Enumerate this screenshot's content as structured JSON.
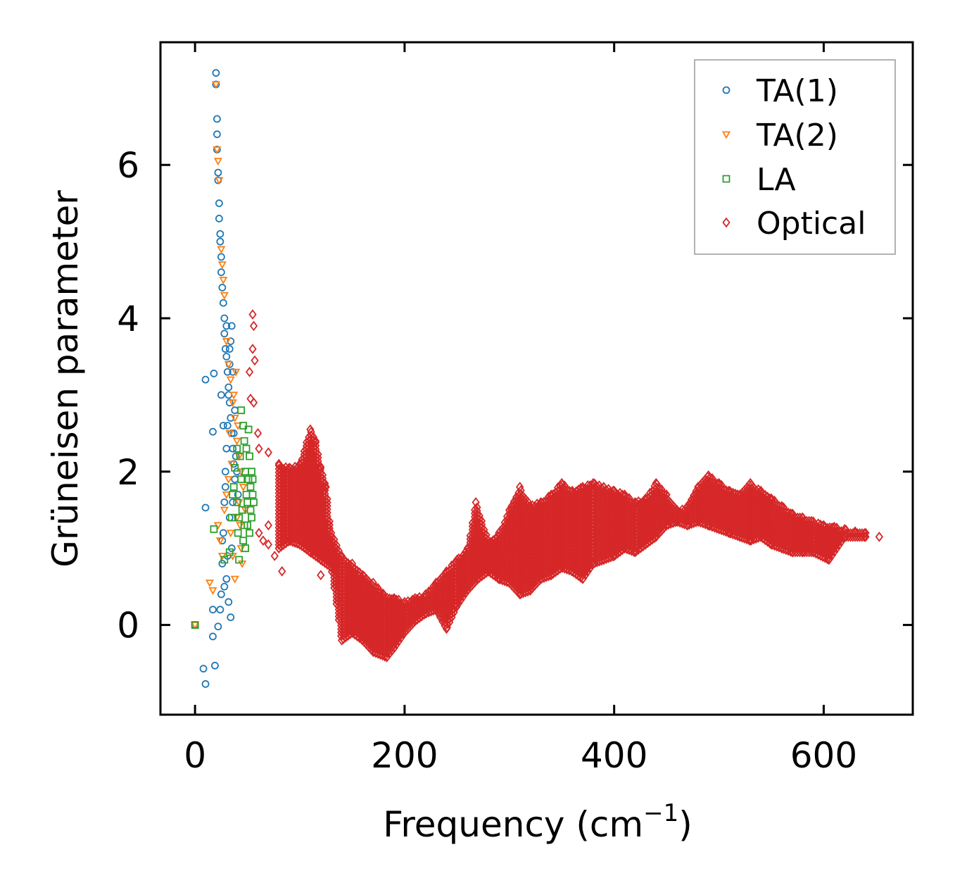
{
  "chart_data": {
    "type": "scatter",
    "title": "",
    "xlabel": "Frequency (cm",
    "xlabel_sup": "−1",
    "xlabel_close": ")",
    "ylabel": "Grüneisen parameter",
    "xlim": [
      -33,
      685
    ],
    "ylim": [
      -1.17,
      7.6
    ],
    "xticks": [
      0,
      200,
      400,
      600
    ],
    "xtick_labels": [
      "0",
      "200",
      "400",
      "600"
    ],
    "yticks": [
      0,
      2,
      4,
      6
    ],
    "ytick_labels": [
      "0",
      "2",
      "4",
      "6"
    ],
    "grid": false,
    "legend_position": "top-right",
    "series": [
      {
        "name": "TA(1)",
        "marker": "circle",
        "color": "#1f77b4",
        "points": [
          [
            0,
            0
          ],
          [
            8,
            -0.57
          ],
          [
            10,
            -0.77
          ],
          [
            10,
            1.53
          ],
          [
            10,
            3.2
          ],
          [
            17,
            0.2
          ],
          [
            17,
            -0.15
          ],
          [
            17,
            2.52
          ],
          [
            18,
            3.28
          ],
          [
            19,
            -0.53
          ],
          [
            20,
            7.2
          ],
          [
            20,
            7.05
          ],
          [
            21,
            6.6
          ],
          [
            21,
            6.4
          ],
          [
            21,
            6.2
          ],
          [
            22,
            5.9
          ],
          [
            22,
            5.8
          ],
          [
            23,
            5.5
          ],
          [
            23,
            5.3
          ],
          [
            24,
            5.1
          ],
          [
            24,
            5.0
          ],
          [
            25,
            4.8
          ],
          [
            25,
            4.6
          ],
          [
            26,
            4.4
          ],
          [
            27,
            4.2
          ],
          [
            28,
            4.0
          ],
          [
            28,
            3.8
          ],
          [
            29,
            3.6
          ],
          [
            30,
            3.5
          ],
          [
            31,
            3.3
          ],
          [
            32,
            3.1
          ],
          [
            33,
            2.9
          ],
          [
            34,
            2.7
          ],
          [
            35,
            2.5
          ],
          [
            36,
            2.3
          ],
          [
            37,
            2.1
          ],
          [
            38,
            1.9
          ],
          [
            22,
            -0.02
          ],
          [
            24,
            0.2
          ],
          [
            25,
            0.4
          ],
          [
            26,
            0.8
          ],
          [
            27,
            1.2
          ],
          [
            28,
            1.6
          ],
          [
            29,
            2.0
          ],
          [
            30,
            2.3
          ],
          [
            31,
            2.6
          ],
          [
            32,
            3.0
          ],
          [
            33,
            3.4
          ],
          [
            34,
            3.7
          ],
          [
            35,
            3.9
          ],
          [
            36,
            3.3
          ],
          [
            30,
            0.6
          ],
          [
            32,
            0.3
          ],
          [
            34,
            0.1
          ],
          [
            36,
            1.6
          ],
          [
            38,
            2.8
          ],
          [
            40,
            2.0
          ],
          [
            26,
            1.1
          ],
          [
            28,
            0.5
          ],
          [
            33,
            1.4
          ],
          [
            35,
            1.0
          ],
          [
            31,
            0.9
          ],
          [
            29,
            1.8
          ],
          [
            37,
            2.5
          ],
          [
            39,
            2.2
          ],
          [
            27,
            2.6
          ],
          [
            41,
            1.7
          ],
          [
            25,
            3.0
          ],
          [
            30,
            3.9
          ],
          [
            33,
            3.6
          ]
        ]
      },
      {
        "name": "TA(2)",
        "marker": "triangle",
        "color": "#ff7f0e",
        "points": [
          [
            0,
            0
          ],
          [
            14,
            0.55
          ],
          [
            17,
            0.45
          ],
          [
            20,
            7.05
          ],
          [
            21,
            6.2
          ],
          [
            22,
            6.05
          ],
          [
            23,
            5.8
          ],
          [
            25,
            4.9
          ],
          [
            26,
            4.7
          ],
          [
            27,
            4.5
          ],
          [
            28,
            4.3
          ],
          [
            30,
            3.7
          ],
          [
            32,
            3.4
          ],
          [
            34,
            3.2
          ],
          [
            36,
            2.9
          ],
          [
            38,
            2.7
          ],
          [
            40,
            2.4
          ],
          [
            42,
            2.2
          ],
          [
            44,
            2.0
          ],
          [
            46,
            1.8
          ],
          [
            22,
            1.3
          ],
          [
            24,
            1.1
          ],
          [
            26,
            0.9
          ],
          [
            28,
            1.5
          ],
          [
            30,
            1.7
          ],
          [
            32,
            1.9
          ],
          [
            34,
            1.2
          ],
          [
            36,
            0.9
          ],
          [
            38,
            0.6
          ],
          [
            40,
            1.4
          ],
          [
            42,
            1.6
          ],
          [
            44,
            1.0
          ],
          [
            48,
            1.5
          ],
          [
            35,
            2.1
          ],
          [
            33,
            2.5
          ],
          [
            37,
            3.0
          ],
          [
            39,
            3.3
          ],
          [
            41,
            2.6
          ],
          [
            43,
            1.3
          ],
          [
            45,
            0.8
          ]
        ]
      },
      {
        "name": "LA",
        "marker": "square",
        "color": "#2ca02c",
        "points": [
          [
            0,
            0
          ],
          [
            18,
            1.25
          ],
          [
            28,
            0.85
          ],
          [
            33,
            0.95
          ],
          [
            35,
            1.4
          ],
          [
            37,
            1.8
          ],
          [
            38,
            2.05
          ],
          [
            40,
            1.6
          ],
          [
            41,
            1.2
          ],
          [
            42,
            0.85
          ],
          [
            43,
            2.2
          ],
          [
            44,
            1.9
          ],
          [
            45,
            1.5
          ],
          [
            46,
            1.1
          ],
          [
            47,
            2.4
          ],
          [
            48,
            2.0
          ],
          [
            49,
            1.7
          ],
          [
            50,
            1.3
          ],
          [
            51,
            2.55
          ],
          [
            52,
            2.2
          ],
          [
            53,
            1.8
          ],
          [
            54,
            1.4
          ],
          [
            55,
            1.9
          ],
          [
            56,
            1.6
          ],
          [
            44,
            2.8
          ],
          [
            46,
            2.6
          ],
          [
            48,
            1.0
          ],
          [
            50,
            1.6
          ],
          [
            52,
            1.2
          ],
          [
            54,
            2.0
          ],
          [
            42,
            1.4
          ],
          [
            40,
            2.3
          ],
          [
            36,
            1.7
          ],
          [
            47,
            1.3
          ],
          [
            49,
            2.3
          ],
          [
            51,
            1.9
          ],
          [
            53,
            1.5
          ],
          [
            55,
            1.7
          ]
        ]
      },
      {
        "name": "Optical",
        "marker": "diamond",
        "color": "#d62728",
        "points": [
          [
            55,
            4.05
          ],
          [
            56,
            3.9
          ],
          [
            55,
            3.6
          ],
          [
            57,
            3.45
          ],
          [
            52,
            3.3
          ],
          [
            53,
            2.95
          ],
          [
            56,
            2.9
          ],
          [
            60,
            2.5
          ],
          [
            83,
            0.7
          ],
          [
            76,
            0.9
          ],
          [
            120,
            0.65
          ],
          [
            65,
            1.1
          ],
          [
            70,
            1.05
          ],
          [
            110,
            1.2
          ],
          [
            61,
            2.3
          ],
          [
            70,
            2.25
          ],
          [
            80,
            2.1
          ],
          [
            90,
            2.05
          ],
          [
            100,
            2.1
          ],
          [
            110,
            2.55
          ],
          [
            115,
            2.4
          ],
          [
            120,
            2.05
          ],
          [
            125,
            1.8
          ],
          [
            130,
            1.2
          ],
          [
            140,
            0.9
          ],
          [
            150,
            0.8
          ],
          [
            160,
            0.65
          ],
          [
            170,
            0.55
          ],
          [
            180,
            0.4
          ],
          [
            190,
            0.35
          ],
          [
            200,
            0.3
          ],
          [
            210,
            0.35
          ],
          [
            220,
            0.4
          ],
          [
            230,
            0.55
          ],
          [
            240,
            0.7
          ],
          [
            250,
            0.85
          ],
          [
            260,
            1.0
          ],
          [
            268,
            1.6
          ],
          [
            280,
            1.1
          ],
          [
            290,
            1.2
          ],
          [
            300,
            1.5
          ],
          [
            310,
            1.8
          ],
          [
            320,
            1.55
          ],
          [
            330,
            1.6
          ],
          [
            340,
            1.7
          ],
          [
            350,
            1.85
          ],
          [
            360,
            1.75
          ],
          [
            370,
            1.8
          ],
          [
            380,
            1.85
          ],
          [
            390,
            1.8
          ],
          [
            400,
            1.75
          ],
          [
            410,
            1.7
          ],
          [
            420,
            1.6
          ],
          [
            430,
            1.65
          ],
          [
            440,
            1.85
          ],
          [
            450,
            1.7
          ],
          [
            460,
            1.5
          ],
          [
            470,
            1.55
          ],
          [
            480,
            1.8
          ],
          [
            490,
            1.95
          ],
          [
            500,
            1.85
          ],
          [
            510,
            1.75
          ],
          [
            520,
            1.7
          ],
          [
            530,
            1.85
          ],
          [
            540,
            1.75
          ],
          [
            550,
            1.65
          ],
          [
            560,
            1.55
          ],
          [
            570,
            1.45
          ],
          [
            580,
            1.4
          ],
          [
            590,
            1.35
          ],
          [
            600,
            1.3
          ],
          [
            610,
            1.28
          ],
          [
            620,
            1.25
          ],
          [
            630,
            1.22
          ],
          [
            640,
            1.2
          ],
          [
            653,
            1.15
          ],
          [
            61,
            1.2
          ],
          [
            70,
            1.3
          ],
          [
            80,
            1.0
          ],
          [
            90,
            1.1
          ],
          [
            100,
            1.05
          ],
          [
            110,
            0.95
          ],
          [
            120,
            0.85
          ],
          [
            130,
            0.75
          ],
          [
            140,
            -0.2
          ],
          [
            150,
            -0.1
          ],
          [
            160,
            -0.2
          ],
          [
            170,
            -0.35
          ],
          [
            183,
            -0.42
          ],
          [
            190,
            -0.3
          ],
          [
            200,
            -0.1
          ],
          [
            210,
            0.05
          ],
          [
            220,
            0.15
          ],
          [
            230,
            0.2
          ],
          [
            240,
            -0.05
          ],
          [
            250,
            0.25
          ],
          [
            260,
            0.45
          ],
          [
            270,
            0.6
          ],
          [
            280,
            0.7
          ],
          [
            290,
            0.6
          ],
          [
            300,
            0.55
          ],
          [
            310,
            0.4
          ],
          [
            320,
            0.45
          ],
          [
            330,
            0.6
          ],
          [
            340,
            0.65
          ],
          [
            350,
            0.75
          ],
          [
            360,
            0.7
          ],
          [
            370,
            0.6
          ],
          [
            380,
            0.8
          ],
          [
            390,
            0.85
          ],
          [
            400,
            0.9
          ],
          [
            410,
            1.0
          ],
          [
            420,
            0.95
          ],
          [
            430,
            1.05
          ],
          [
            440,
            1.15
          ],
          [
            450,
            1.3
          ],
          [
            460,
            1.35
          ],
          [
            470,
            1.3
          ],
          [
            480,
            1.35
          ],
          [
            490,
            1.3
          ],
          [
            500,
            1.25
          ],
          [
            510,
            1.2
          ],
          [
            520,
            1.15
          ],
          [
            530,
            1.1
          ],
          [
            540,
            1.15
          ],
          [
            550,
            1.05
          ],
          [
            560,
            1.0
          ],
          [
            570,
            0.95
          ],
          [
            580,
            0.95
          ],
          [
            590,
            0.95
          ],
          [
            605,
            0.85
          ],
          [
            620,
            1.15
          ],
          [
            640,
            1.15
          ]
        ]
      }
    ]
  }
}
